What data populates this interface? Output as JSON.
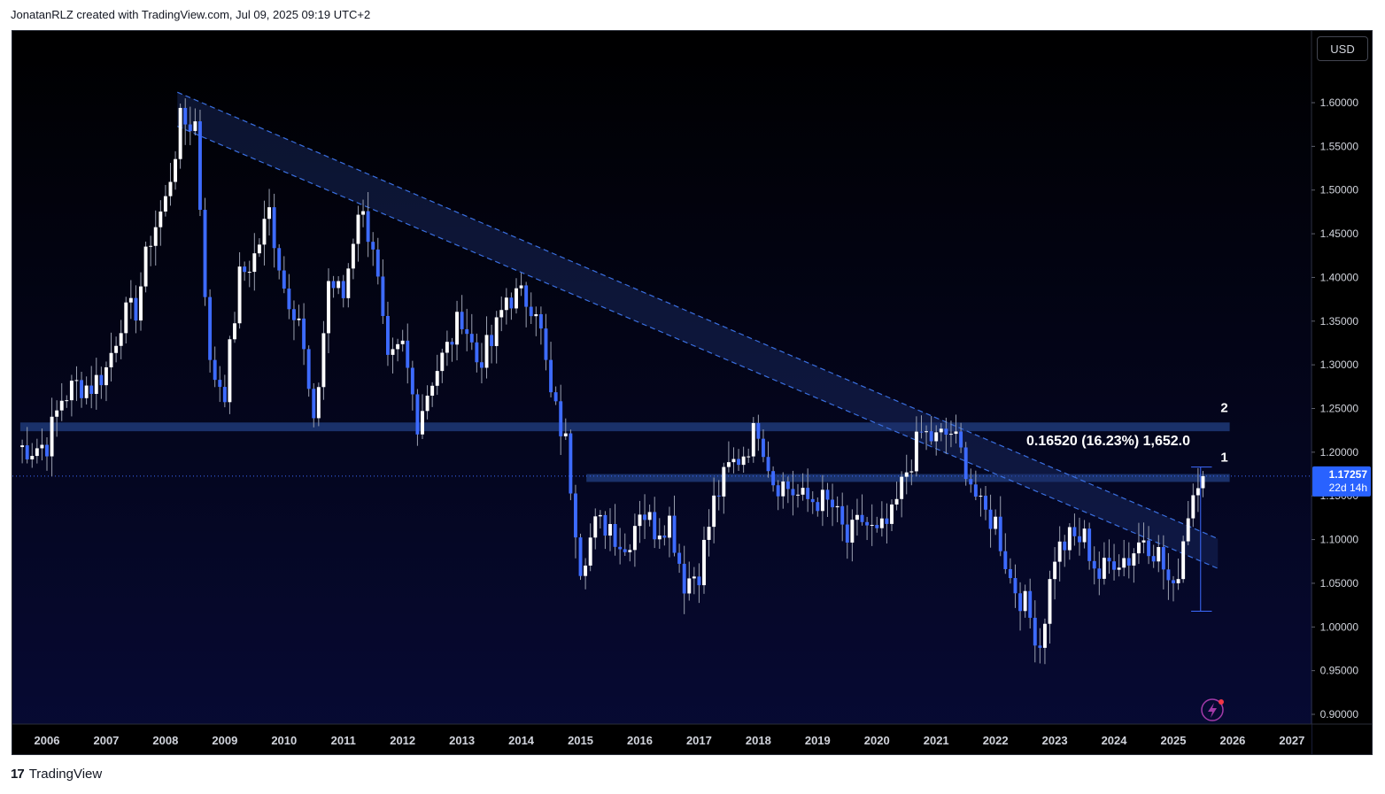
{
  "header": {
    "text": "JonatanRLZ created with TradingView.com, Jul 09, 2025 09:19 UTC+2"
  },
  "footer": {
    "logo": "17",
    "brand": "TradingView"
  },
  "toolbar": {
    "currency": "USD"
  },
  "colors": {
    "background_top": "#000000",
    "background_bottom": "#070a35",
    "up_candle": "#ffffff",
    "down_candle": "#3d6bff",
    "trendline": "#3a6fe0",
    "zone": "#1e3a78",
    "price_label": "#2962ff"
  },
  "chart_data": {
    "type": "candlestick",
    "symbol_quote": "USD",
    "timeframe": "1M",
    "y_range": [
      0.88,
      1.68
    ],
    "y_ticks": [
      "1.60000",
      "1.55000",
      "1.50000",
      "1.45000",
      "1.40000",
      "1.35000",
      "1.30000",
      "1.25000",
      "1.20000",
      "1.15000",
      "1.10000",
      "1.05000",
      "1.00000",
      "0.95000",
      "0.90000"
    ],
    "x_ticks": [
      "2006",
      "2007",
      "2008",
      "2009",
      "2010",
      "2011",
      "2012",
      "2013",
      "2014",
      "2015",
      "2016",
      "2017",
      "2018",
      "2019",
      "2020",
      "2021",
      "2022",
      "2023",
      "2024",
      "2025",
      "2026",
      "2027"
    ],
    "x_range": [
      2005.55,
      2027.0
    ],
    "last_price": {
      "value": "1.17257",
      "countdown": "22d 14h",
      "numeric": 1.17257
    },
    "closes_monthly": [
      [
        2005.5,
        1.2062
      ],
      [
        2005.75,
        1.2047
      ],
      [
        2006.0,
        1.21
      ],
      [
        2006.25,
        1.262
      ],
      [
        2006.5,
        1.277
      ],
      [
        2006.75,
        1.276
      ],
      [
        2007.0,
        1.295
      ],
      [
        2007.25,
        1.352
      ],
      [
        2007.5,
        1.364
      ],
      [
        2007.75,
        1.447
      ],
      [
        2008.0,
        1.487
      ],
      [
        2008.25,
        1.577
      ],
      [
        2008.5,
        1.577
      ],
      [
        2008.75,
        1.296
      ],
      [
        2009.0,
        1.272
      ],
      [
        2009.25,
        1.399
      ],
      [
        2009.5,
        1.424
      ],
      [
        2009.75,
        1.475
      ],
      [
        2010.0,
        1.389
      ],
      [
        2010.25,
        1.356
      ],
      [
        2010.5,
        1.223
      ],
      [
        2010.75,
        1.396
      ],
      [
        2011.0,
        1.378
      ],
      [
        2011.25,
        1.481
      ],
      [
        2011.5,
        1.44
      ],
      [
        2011.75,
        1.295
      ],
      [
        2012.0,
        1.319
      ],
      [
        2012.25,
        1.237
      ],
      [
        2012.5,
        1.286
      ],
      [
        2012.75,
        1.318
      ],
      [
        2013.0,
        1.358
      ],
      [
        2013.25,
        1.305
      ],
      [
        2013.5,
        1.323
      ],
      [
        2013.75,
        1.378
      ],
      [
        2014.0,
        1.377
      ],
      [
        2014.25,
        1.37
      ],
      [
        2014.5,
        1.263
      ],
      [
        2014.75,
        1.21
      ],
      [
        2015.0,
        1.073
      ],
      [
        2015.25,
        1.115
      ],
      [
        2015.5,
        1.118
      ],
      [
        2015.75,
        1.086
      ],
      [
        2016.0,
        1.138
      ],
      [
        2016.25,
        1.113
      ],
      [
        2016.5,
        1.123
      ],
      [
        2016.75,
        1.052
      ],
      [
        2017.0,
        1.065
      ],
      [
        2017.25,
        1.142
      ],
      [
        2017.5,
        1.181
      ],
      [
        2017.75,
        1.2
      ],
      [
        2018.0,
        1.23
      ],
      [
        2018.25,
        1.169
      ],
      [
        2018.5,
        1.16
      ],
      [
        2018.75,
        1.145
      ],
      [
        2019.0,
        1.146
      ],
      [
        2019.25,
        1.137
      ],
      [
        2019.5,
        1.098
      ],
      [
        2019.75,
        1.123
      ],
      [
        2020.0,
        1.103
      ],
      [
        2020.25,
        1.123
      ],
      [
        2020.5,
        1.179
      ],
      [
        2020.75,
        1.221
      ],
      [
        2021.0,
        1.214
      ],
      [
        2021.25,
        1.223
      ],
      [
        2021.5,
        1.185
      ],
      [
        2021.75,
        1.133
      ],
      [
        2022.0,
        1.12
      ],
      [
        2022.25,
        1.055
      ],
      [
        2022.5,
        1.025
      ],
      [
        2022.75,
        0.98
      ],
      [
        2023.0,
        1.084
      ],
      [
        2023.25,
        1.1
      ],
      [
        2023.5,
        1.101
      ],
      [
        2023.75,
        1.058
      ],
      [
        2024.0,
        1.08
      ],
      [
        2024.25,
        1.079
      ],
      [
        2024.5,
        1.105
      ],
      [
        2024.75,
        1.083
      ],
      [
        2025.0,
        1.036
      ],
      [
        2025.25,
        1.134
      ],
      [
        2025.42,
        1.176
      ],
      [
        2025.5,
        1.1726
      ]
    ],
    "trend_channel": {
      "upper": [
        [
          2008.2,
          1.612
        ],
        [
          2025.75,
          1.101
        ]
      ],
      "lower": [
        [
          2008.2,
          1.573
        ],
        [
          2025.75,
          1.067
        ]
      ]
    },
    "zones": [
      {
        "name": "2",
        "y_top": 1.234,
        "y_bottom": 1.224,
        "x_start": 2005.55,
        "x_end": 2025.95
      },
      {
        "name": "1",
        "y_top": 1.175,
        "y_bottom": 1.166,
        "x_start": 2015.1,
        "x_end": 2025.95
      }
    ],
    "zone_labels": [
      "2",
      "1"
    ],
    "measure": {
      "label": "0.16520 (16.23%) 1,652.0",
      "from": [
        2025.3,
        1.018
      ],
      "to": [
        2025.5,
        1.183
      ]
    }
  }
}
